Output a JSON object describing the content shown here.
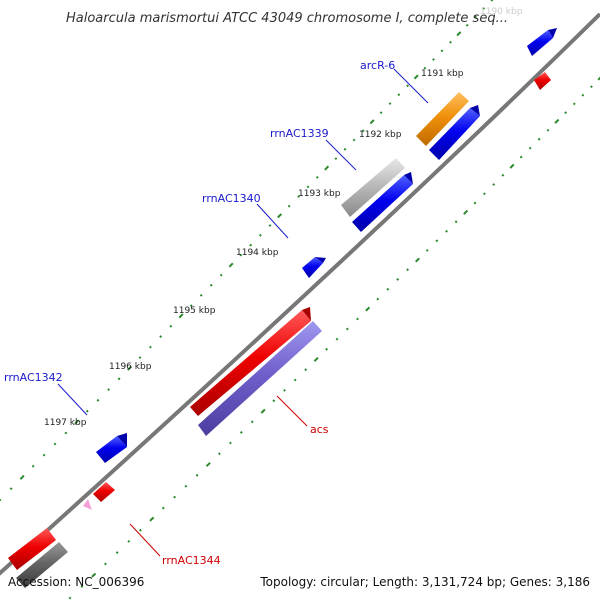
{
  "title": "Haloarcula marismortui ATCC 43049 chromosome I, complete seq...",
  "kbp_labels": [
    {
      "text": "1190 kbp",
      "faint": true
    },
    {
      "text": "1191 kbp"
    },
    {
      "text": "1192 kbp"
    },
    {
      "text": "1193 kbp"
    },
    {
      "text": "1194 kbp"
    },
    {
      "text": "1195 kbp"
    },
    {
      "text": "1196 kbp"
    },
    {
      "text": "1197 kbp"
    }
  ],
  "gene_labels": [
    {
      "name": "arcR-6",
      "color": "#1a1acc"
    },
    {
      "name": "rrnAC1339",
      "color": "#1a1acc"
    },
    {
      "name": "rrnAC1340",
      "color": "#1a1acc"
    },
    {
      "name": "rrnAC1342",
      "color": "#1a1acc"
    },
    {
      "name": "acs",
      "color": "#cc0000"
    },
    {
      "name": "rrnAC1344",
      "color": "#cc0000"
    }
  ],
  "colors": {
    "backbone": "#777777",
    "tick": "#2a8a2a",
    "forward_gene": "#0000ee",
    "reverse_gene": "#ee0000",
    "rrna": "#f0900a",
    "pseudogene": "#bbbbbb",
    "acs_overlay": "#7060cc",
    "misc": "#f4a0d8"
  },
  "footer": {
    "accession": "Accession: NC_006396",
    "summary": "Topology: circular; Length: 3,131,724 bp; Genes: 3,186"
  }
}
